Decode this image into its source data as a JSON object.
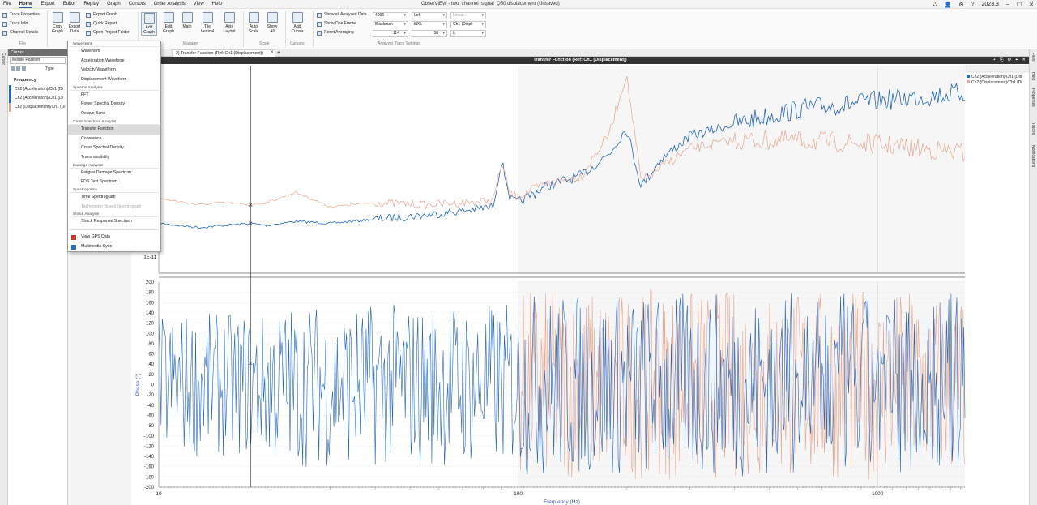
{
  "menubar": {
    "items": [
      "File",
      "Home",
      "Export",
      "Editor",
      "Replay",
      "Graph",
      "Cursors",
      "Order Analysis",
      "View",
      "Help"
    ],
    "active": "Home"
  },
  "window": {
    "title": "ObserVIEW - two_channel_signal_Q50 displacement (Unsaved)",
    "version": "2023.3"
  },
  "ribbon": {
    "file": {
      "trace_properties": "Trace Properties",
      "trace_info": "Trace Info",
      "channel_details": "Channel Details",
      "group": "File"
    },
    "export": {
      "copy_graph": "Copy Graph",
      "export_data": "Export Data",
      "export_graph": "Export Graph",
      "quick_report": "Quick Report",
      "open_project_folder": "Open Project Folder",
      "group": "Export"
    },
    "manage": {
      "add_graph": "Add Graph",
      "edit_graph": "Edit Graph",
      "math": "Math",
      "tile_vertical": "Tile Vertical",
      "axis_layout": "Axis Layout",
      "group": "Manage"
    },
    "scale": {
      "auto_scale": "Auto Scale",
      "show_all": "Show All",
      "group": "Scale"
    },
    "cursors": {
      "add_cursor": "Add Cursor",
      "group": "Cursors"
    },
    "analyzer": {
      "show_all_analyzed": "Show all Analyzed Data",
      "show_one_frame": "Show One Frame",
      "reset_averaging": "Reset Averaging",
      "fft_size": "4096",
      "window_fn": "Blackman",
      "overlap": "114",
      "alignment": "Left",
      "overlap_pct": "50%",
      "averages": "58",
      "scale": "Linear",
      "channel": "Ch1 (Displ",
      "unit": "f₀",
      "group": "Analyzer Trace Settings"
    }
  },
  "left_panel": {
    "title": "Cursor",
    "mode": "Mouse Position",
    "type_label": "Type",
    "section": "Frequency",
    "rows": [
      {
        "label": "Ch2 (Acceleration)/Ch1 (Di",
        "color": "#1f66c1"
      },
      {
        "label": "Ch2 (Acceleration)/Ch1 (Di",
        "color": "#1f66c1"
      },
      {
        "label": "Ch2 (Displacement)/Ch1 (Di",
        "color": "#e8a58d"
      }
    ],
    "strip_label": "Cursor"
  },
  "dropdown": {
    "sections": [
      {
        "header": "Waveforms",
        "items": [
          "Waveform",
          "Acceleration Waveform",
          "Velocity Waveform",
          "Displacement Waveform"
        ]
      },
      {
        "header": "Spectral Analysis",
        "items": [
          "FFT",
          "Power Spectral Density",
          "Octave Band"
        ]
      },
      {
        "header": "Cross Spectrum Analysis",
        "items": [
          "Transfer Function",
          "Coherence",
          "Cross Spectral Density",
          "Transmissibility"
        ]
      },
      {
        "header": "Damage Analysis",
        "items": [
          "Fatigue Damage Spectrum",
          "FDS Test Spectrum"
        ]
      },
      {
        "header": "Spectrograms",
        "items": [
          "Time Spectrogram",
          "Tachometer Based Spectrogram"
        ]
      },
      {
        "header": "Shock Analysis",
        "items": [
          "Shock Response Spectrum"
        ]
      }
    ],
    "extra": [
      "View GPS Data",
      "Multimedia Sync"
    ],
    "selected": "Transfer Function",
    "disabled": "Tachometer Based Spectrogram"
  },
  "tabs": {
    "active": "2) Transfer Function (Ref: Ch1 (Displacement))",
    "add": "+"
  },
  "graph": {
    "title": "Transfer Function (Ref: Ch1 (Displacement))"
  },
  "right_strip": [
    "Files",
    "Help",
    "Properties",
    "Traces",
    "Notifications"
  ],
  "chart_data": [
    {
      "type": "line",
      "title": "Transfer Function (Ref: Ch1 (Displacement))",
      "xscale": "log",
      "xlim": [
        10,
        1750
      ],
      "y_tick_labels": [
        "1E-11"
      ],
      "legend": {
        "placement": "top-right"
      },
      "series": [
        {
          "name": "Ch2 (Acceleration)/Ch1 (Dis",
          "color": "#1f66c1",
          "x": [
            10,
            13,
            15,
            18,
            20,
            24,
            30,
            40,
            55,
            70,
            85,
            90,
            95,
            100,
            120,
            150,
            180,
            200,
            220,
            250,
            300,
            400,
            600,
            1000,
            1750
          ],
          "y_rel": [
            0.76,
            0.78,
            0.77,
            0.76,
            0.77,
            0.75,
            0.76,
            0.74,
            0.72,
            0.7,
            0.68,
            0.46,
            0.64,
            0.66,
            0.58,
            0.53,
            0.42,
            0.3,
            0.58,
            0.45,
            0.34,
            0.28,
            0.21,
            0.17,
            0.13
          ]
        },
        {
          "name": "Ch2 (Displacement)/Ch1 (Di",
          "color": "#e8a58d",
          "x": [
            10,
            13,
            15,
            18,
            20,
            24,
            30,
            40,
            55,
            70,
            85,
            90,
            95,
            100,
            120,
            150,
            180,
            200,
            220,
            250,
            300,
            400,
            600,
            1000,
            1750
          ],
          "y_rel": [
            0.64,
            0.67,
            0.66,
            0.67,
            0.66,
            0.61,
            0.68,
            0.66,
            0.67,
            0.66,
            0.65,
            0.47,
            0.62,
            0.63,
            0.57,
            0.53,
            0.32,
            0.04,
            0.56,
            0.49,
            0.4,
            0.36,
            0.36,
            0.38,
            0.42
          ]
        }
      ]
    },
    {
      "type": "line",
      "ylabel": "Phase (°)",
      "xlabel": "Frequency (Hz)",
      "xscale": "log",
      "xlim": [
        10,
        1750
      ],
      "ylim": [
        -200,
        200
      ],
      "x_tick_labels": [
        "10",
        "100",
        "1000"
      ],
      "y_ticks": [
        200,
        180,
        160,
        140,
        120,
        100,
        80,
        60,
        40,
        20,
        0,
        -20,
        -40,
        -60,
        -80,
        -100,
        -120,
        -140,
        -160,
        -180,
        -200
      ],
      "series": [
        {
          "name": "Ch2 (Acceleration)/Ch1 (Dis",
          "color": "#1f66c1"
        },
        {
          "name": "Ch2 (Displacement)/Ch1 (Di",
          "color": "#e8a58d"
        }
      ]
    }
  ],
  "colors": {
    "accent": "#1a5fb4",
    "header_dark": "#333333",
    "blue_trace": "#1f66c1",
    "orange_trace": "#e8a58d"
  }
}
